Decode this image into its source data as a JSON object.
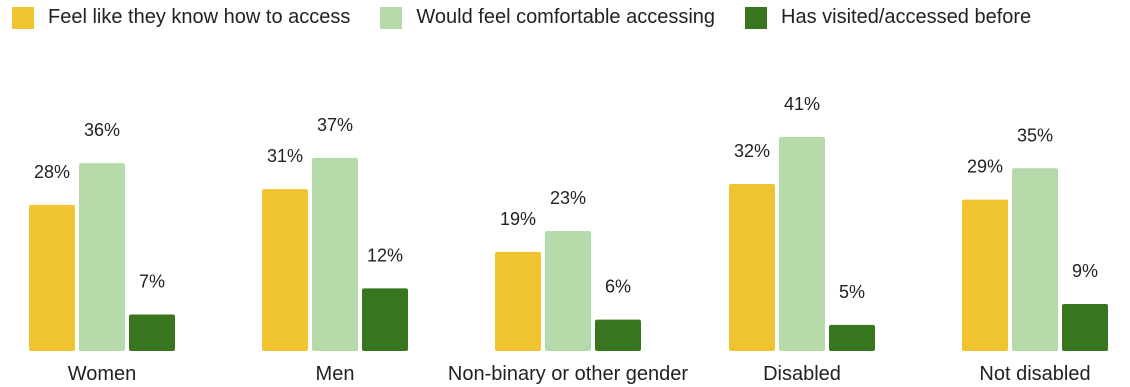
{
  "chart_data": {
    "type": "bar",
    "categories": [
      "Women",
      "Men",
      "Non-binary or other gender",
      "Disabled",
      "Not disabled"
    ],
    "series": [
      {
        "name": "Feel like they know how to access",
        "values": [
          28,
          31,
          19,
          32,
          29
        ],
        "labels": [
          "28%",
          "31%",
          "19%",
          "32%",
          "29%"
        ],
        "color": "#f0c330"
      },
      {
        "name": "Would feel comfortable accessing",
        "values": [
          36,
          37,
          23,
          41,
          35
        ],
        "labels": [
          "36%",
          "37%",
          "23%",
          "41%",
          "35%"
        ],
        "color": "#b6d9a9"
      },
      {
        "name": "Has visited/accessed before",
        "values": [
          7,
          12,
          6,
          5,
          9
        ],
        "labels": [
          "7%",
          "12%",
          "6%",
          "5%",
          "9%"
        ],
        "color": "#37761f"
      }
    ],
    "ylim": [
      0,
      41
    ],
    "grid": false,
    "legend_position": "top-left"
  }
}
